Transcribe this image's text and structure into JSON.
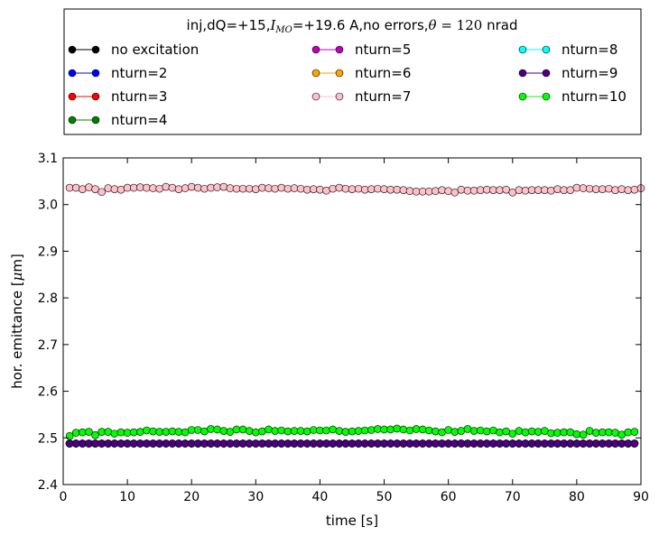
{
  "chart_data": {
    "type": "line",
    "title_parts": [
      "inj,dQ=+15,",
      "I",
      "MO",
      "=+19.6 A,no errors,",
      "θ",
      " = 120",
      " nrad"
    ],
    "xlabel": "time [s]",
    "ylabel_parts": [
      "hor. emittance [",
      "μ",
      "m]"
    ],
    "xlim": [
      0,
      90
    ],
    "ylim": [
      2.4,
      3.1
    ],
    "xticks": [
      0,
      10,
      20,
      30,
      40,
      50,
      60,
      70,
      80,
      90
    ],
    "yticks": [
      2.4,
      2.5,
      2.6,
      2.7,
      2.8,
      2.9,
      3.0,
      3.1
    ],
    "xtick_labels": [
      "0",
      "10",
      "20",
      "30",
      "40",
      "50",
      "60",
      "70",
      "80",
      "90"
    ],
    "ytick_labels": [
      "2.4",
      "2.5",
      "2.6",
      "2.7",
      "2.8",
      "2.9",
      "3.0",
      "3.1"
    ],
    "grid": false,
    "legend_placement": "above plot, three columns",
    "x_start": 1,
    "x_step": 1,
    "series": [
      {
        "name": "no excitation",
        "color": "#000000",
        "values": [
          2.488,
          2.488,
          2.488,
          2.488,
          2.488,
          2.488,
          2.488,
          2.488,
          2.488,
          2.488,
          2.488,
          2.488,
          2.488,
          2.488,
          2.488,
          2.488,
          2.488,
          2.488,
          2.488,
          2.488,
          2.488,
          2.488,
          2.488,
          2.488,
          2.488,
          2.488,
          2.488,
          2.488,
          2.488,
          2.488,
          2.488,
          2.488,
          2.488,
          2.488,
          2.488,
          2.488,
          2.488,
          2.488,
          2.488,
          2.488,
          2.488,
          2.488,
          2.488,
          2.488,
          2.488,
          2.488,
          2.488,
          2.488,
          2.488,
          2.488,
          2.488,
          2.488,
          2.488,
          2.488,
          2.488,
          2.488,
          2.488,
          2.488,
          2.488,
          2.488,
          2.488,
          2.488,
          2.488,
          2.488,
          2.488,
          2.488,
          2.488,
          2.488,
          2.488,
          2.488,
          2.488,
          2.488,
          2.488,
          2.488,
          2.488,
          2.488,
          2.488,
          2.488,
          2.488,
          2.488,
          2.488,
          2.488,
          2.488,
          2.488,
          2.488,
          2.488,
          2.488,
          2.488,
          2.488
        ]
      },
      {
        "name": "nturn=2",
        "color": "#0000ff",
        "values": [
          2.488,
          2.488,
          2.488,
          2.488,
          2.488,
          2.488,
          2.488,
          2.488,
          2.488,
          2.488,
          2.488,
          2.488,
          2.488,
          2.488,
          2.488,
          2.488,
          2.488,
          2.488,
          2.488,
          2.488,
          2.488,
          2.488,
          2.488,
          2.488,
          2.488,
          2.488,
          2.488,
          2.488,
          2.488,
          2.488,
          2.488,
          2.488,
          2.488,
          2.488,
          2.488,
          2.488,
          2.488,
          2.488,
          2.488,
          2.488,
          2.488,
          2.488,
          2.488,
          2.488,
          2.488,
          2.488,
          2.488,
          2.488,
          2.488,
          2.488,
          2.488,
          2.488,
          2.488,
          2.488,
          2.488,
          2.488,
          2.488,
          2.488,
          2.488,
          2.488,
          2.488,
          2.488,
          2.488,
          2.488,
          2.488,
          2.488,
          2.488,
          2.488,
          2.488,
          2.488,
          2.488,
          2.488,
          2.488,
          2.488,
          2.488,
          2.488,
          2.488,
          2.488,
          2.488,
          2.488,
          2.488,
          2.488,
          2.488,
          2.488,
          2.488,
          2.488,
          2.488,
          2.488,
          2.488
        ]
      },
      {
        "name": "nturn=3",
        "color": "#ff0000",
        "values": [
          2.488,
          2.488,
          2.488,
          2.488,
          2.488,
          2.488,
          2.488,
          2.488,
          2.488,
          2.488,
          2.488,
          2.488,
          2.488,
          2.488,
          2.488,
          2.488,
          2.488,
          2.488,
          2.488,
          2.488,
          2.488,
          2.488,
          2.488,
          2.488,
          2.488,
          2.488,
          2.488,
          2.488,
          2.488,
          2.488,
          2.488,
          2.488,
          2.488,
          2.488,
          2.488,
          2.488,
          2.488,
          2.488,
          2.488,
          2.488,
          2.488,
          2.488,
          2.488,
          2.488,
          2.488,
          2.488,
          2.488,
          2.488,
          2.488,
          2.488,
          2.488,
          2.488,
          2.488,
          2.488,
          2.488,
          2.488,
          2.488,
          2.488,
          2.488,
          2.488,
          2.488,
          2.488,
          2.488,
          2.488,
          2.488,
          2.488,
          2.488,
          2.488,
          2.488,
          2.488,
          2.488,
          2.488,
          2.488,
          2.488,
          2.488,
          2.488,
          2.488,
          2.488,
          2.488,
          2.488,
          2.488,
          2.488,
          2.488,
          2.488,
          2.488,
          2.488,
          2.488,
          2.488,
          2.488
        ]
      },
      {
        "name": "nturn=4",
        "color": "#008000",
        "values": [
          2.488,
          2.488,
          2.488,
          2.488,
          2.488,
          2.488,
          2.488,
          2.488,
          2.488,
          2.488,
          2.488,
          2.488,
          2.488,
          2.488,
          2.488,
          2.488,
          2.488,
          2.488,
          2.488,
          2.488,
          2.488,
          2.488,
          2.488,
          2.488,
          2.488,
          2.488,
          2.488,
          2.488,
          2.488,
          2.488,
          2.488,
          2.488,
          2.488,
          2.488,
          2.488,
          2.488,
          2.488,
          2.488,
          2.488,
          2.488,
          2.488,
          2.488,
          2.488,
          2.488,
          2.488,
          2.488,
          2.488,
          2.488,
          2.488,
          2.488,
          2.488,
          2.488,
          2.488,
          2.488,
          2.488,
          2.488,
          2.488,
          2.488,
          2.488,
          2.488,
          2.488,
          2.488,
          2.488,
          2.488,
          2.488,
          2.488,
          2.488,
          2.488,
          2.488,
          2.488,
          2.488,
          2.488,
          2.488,
          2.488,
          2.488,
          2.488,
          2.488,
          2.488,
          2.488,
          2.488,
          2.488,
          2.488,
          2.488,
          2.488,
          2.488,
          2.488,
          2.488,
          2.488,
          2.488
        ]
      },
      {
        "name": "nturn=5",
        "color": "#c000c0",
        "values": [
          2.488,
          2.488,
          2.488,
          2.488,
          2.488,
          2.488,
          2.488,
          2.488,
          2.488,
          2.488,
          2.488,
          2.488,
          2.488,
          2.488,
          2.488,
          2.488,
          2.488,
          2.488,
          2.488,
          2.488,
          2.488,
          2.488,
          2.488,
          2.488,
          2.488,
          2.488,
          2.488,
          2.488,
          2.488,
          2.488,
          2.488,
          2.488,
          2.488,
          2.488,
          2.488,
          2.488,
          2.488,
          2.488,
          2.488,
          2.488,
          2.488,
          2.488,
          2.488,
          2.488,
          2.488,
          2.488,
          2.488,
          2.488,
          2.488,
          2.488,
          2.488,
          2.488,
          2.488,
          2.488,
          2.488,
          2.488,
          2.488,
          2.488,
          2.488,
          2.488,
          2.488,
          2.488,
          2.488,
          2.488,
          2.488,
          2.488,
          2.488,
          2.488,
          2.488,
          2.488,
          2.488,
          2.488,
          2.488,
          2.488,
          2.488,
          2.488,
          2.488,
          2.488,
          2.488,
          2.488,
          2.488,
          2.488,
          2.488,
          2.488,
          2.488,
          2.488,
          2.488,
          2.488,
          2.488
        ]
      },
      {
        "name": "nturn=6",
        "color": "#ffa500",
        "values": [
          2.488,
          2.488,
          2.488,
          2.488,
          2.488,
          2.488,
          2.488,
          2.488,
          2.488,
          2.488,
          2.488,
          2.488,
          2.488,
          2.488,
          2.488,
          2.488,
          2.488,
          2.488,
          2.488,
          2.488,
          2.488,
          2.488,
          2.488,
          2.488,
          2.488,
          2.488,
          2.488,
          2.488,
          2.488,
          2.488,
          2.488,
          2.488,
          2.488,
          2.488,
          2.488,
          2.488,
          2.488,
          2.488,
          2.488,
          2.488,
          2.488,
          2.488,
          2.488,
          2.488,
          2.488,
          2.488,
          2.488,
          2.488,
          2.488,
          2.488,
          2.488,
          2.488,
          2.488,
          2.488,
          2.488,
          2.488,
          2.488,
          2.488,
          2.488,
          2.488,
          2.488,
          2.488,
          2.488,
          2.488,
          2.488,
          2.488,
          2.488,
          2.488,
          2.488,
          2.488,
          2.488,
          2.488,
          2.488,
          2.488,
          2.488,
          2.488,
          2.488,
          2.488,
          2.488,
          2.488,
          2.488,
          2.488,
          2.488,
          2.488,
          2.488,
          2.488,
          2.488,
          2.488,
          2.488
        ]
      },
      {
        "name": "nturn=7",
        "color": "#ffc0cb",
        "values": [
          3.036,
          3.036,
          3.033,
          3.037,
          3.033,
          3.027,
          3.035,
          3.033,
          3.032,
          3.036,
          3.036,
          3.037,
          3.036,
          3.035,
          3.034,
          3.038,
          3.036,
          3.033,
          3.035,
          3.038,
          3.036,
          3.034,
          3.036,
          3.037,
          3.038,
          3.035,
          3.034,
          3.034,
          3.034,
          3.033,
          3.036,
          3.035,
          3.034,
          3.036,
          3.034,
          3.035,
          3.034,
          3.032,
          3.033,
          3.032,
          3.03,
          3.034,
          3.036,
          3.034,
          3.033,
          3.034,
          3.032,
          3.033,
          3.034,
          3.033,
          3.032,
          3.032,
          3.031,
          3.029,
          3.028,
          3.028,
          3.028,
          3.029,
          3.031,
          3.029,
          3.026,
          3.032,
          3.03,
          3.03,
          3.031,
          3.032,
          3.031,
          3.031,
          3.032,
          3.026,
          3.031,
          3.03,
          3.031,
          3.031,
          3.031,
          3.03,
          3.033,
          3.031,
          3.031,
          3.036,
          3.035,
          3.034,
          3.033,
          3.033,
          3.034,
          3.031,
          3.033,
          3.031,
          3.032,
          3.035
        ]
      },
      {
        "name": "nturn=8",
        "color": "#00ffff",
        "values": [
          2.488,
          2.488,
          2.488,
          2.488,
          2.488,
          2.488,
          2.488,
          2.488,
          2.488,
          2.488,
          2.488,
          2.488,
          2.488,
          2.488,
          2.488,
          2.488,
          2.488,
          2.488,
          2.488,
          2.488,
          2.488,
          2.488,
          2.488,
          2.488,
          2.488,
          2.488,
          2.488,
          2.488,
          2.488,
          2.488,
          2.488,
          2.488,
          2.488,
          2.488,
          2.488,
          2.488,
          2.488,
          2.488,
          2.488,
          2.488,
          2.488,
          2.488,
          2.488,
          2.488,
          2.488,
          2.488,
          2.488,
          2.488,
          2.488,
          2.488,
          2.488,
          2.488,
          2.488,
          2.488,
          2.488,
          2.488,
          2.488,
          2.488,
          2.488,
          2.488,
          2.488,
          2.488,
          2.488,
          2.488,
          2.488,
          2.488,
          2.488,
          2.488,
          2.488,
          2.488,
          2.488,
          2.488,
          2.488,
          2.488,
          2.488,
          2.488,
          2.488,
          2.488,
          2.488,
          2.488,
          2.488,
          2.488,
          2.488,
          2.488,
          2.488,
          2.488,
          2.488,
          2.488,
          2.488
        ]
      },
      {
        "name": "nturn=9",
        "color": "#4b0082",
        "values": [
          2.488,
          2.488,
          2.488,
          2.488,
          2.488,
          2.488,
          2.488,
          2.488,
          2.488,
          2.488,
          2.488,
          2.488,
          2.488,
          2.488,
          2.488,
          2.488,
          2.488,
          2.488,
          2.488,
          2.488,
          2.488,
          2.488,
          2.488,
          2.488,
          2.488,
          2.488,
          2.488,
          2.488,
          2.488,
          2.488,
          2.488,
          2.488,
          2.488,
          2.488,
          2.488,
          2.488,
          2.488,
          2.488,
          2.488,
          2.488,
          2.488,
          2.488,
          2.488,
          2.488,
          2.488,
          2.488,
          2.488,
          2.488,
          2.488,
          2.488,
          2.488,
          2.488,
          2.488,
          2.488,
          2.488,
          2.488,
          2.488,
          2.488,
          2.488,
          2.488,
          2.488,
          2.488,
          2.488,
          2.488,
          2.488,
          2.488,
          2.488,
          2.488,
          2.488,
          2.488,
          2.488,
          2.488,
          2.488,
          2.488,
          2.488,
          2.488,
          2.488,
          2.488,
          2.488,
          2.488,
          2.488,
          2.488,
          2.488,
          2.488,
          2.488,
          2.488,
          2.488,
          2.488,
          2.488
        ]
      },
      {
        "name": "nturn=10",
        "color": "#00ff00",
        "values": [
          2.504,
          2.511,
          2.512,
          2.513,
          2.506,
          2.513,
          2.513,
          2.509,
          2.512,
          2.511,
          2.512,
          2.513,
          2.516,
          2.514,
          2.513,
          2.513,
          2.514,
          2.513,
          2.512,
          2.517,
          2.517,
          2.514,
          2.519,
          2.518,
          2.515,
          2.513,
          2.518,
          2.518,
          2.515,
          2.512,
          2.514,
          2.518,
          2.515,
          2.516,
          2.514,
          2.515,
          2.515,
          2.514,
          2.517,
          2.516,
          2.516,
          2.518,
          2.515,
          2.513,
          2.514,
          2.515,
          2.516,
          2.517,
          2.519,
          2.518,
          2.518,
          2.52,
          2.518,
          2.516,
          2.519,
          2.518,
          2.516,
          2.514,
          2.512,
          2.517,
          2.513,
          2.515,
          2.519,
          2.515,
          2.516,
          2.514,
          2.516,
          2.512,
          2.514,
          2.509,
          2.515,
          2.512,
          2.514,
          2.513,
          2.515,
          2.51,
          2.511,
          2.512,
          2.512,
          2.508,
          2.507,
          2.515,
          2.511,
          2.512,
          2.512,
          2.511,
          2.507,
          2.512,
          2.513
        ]
      }
    ]
  }
}
